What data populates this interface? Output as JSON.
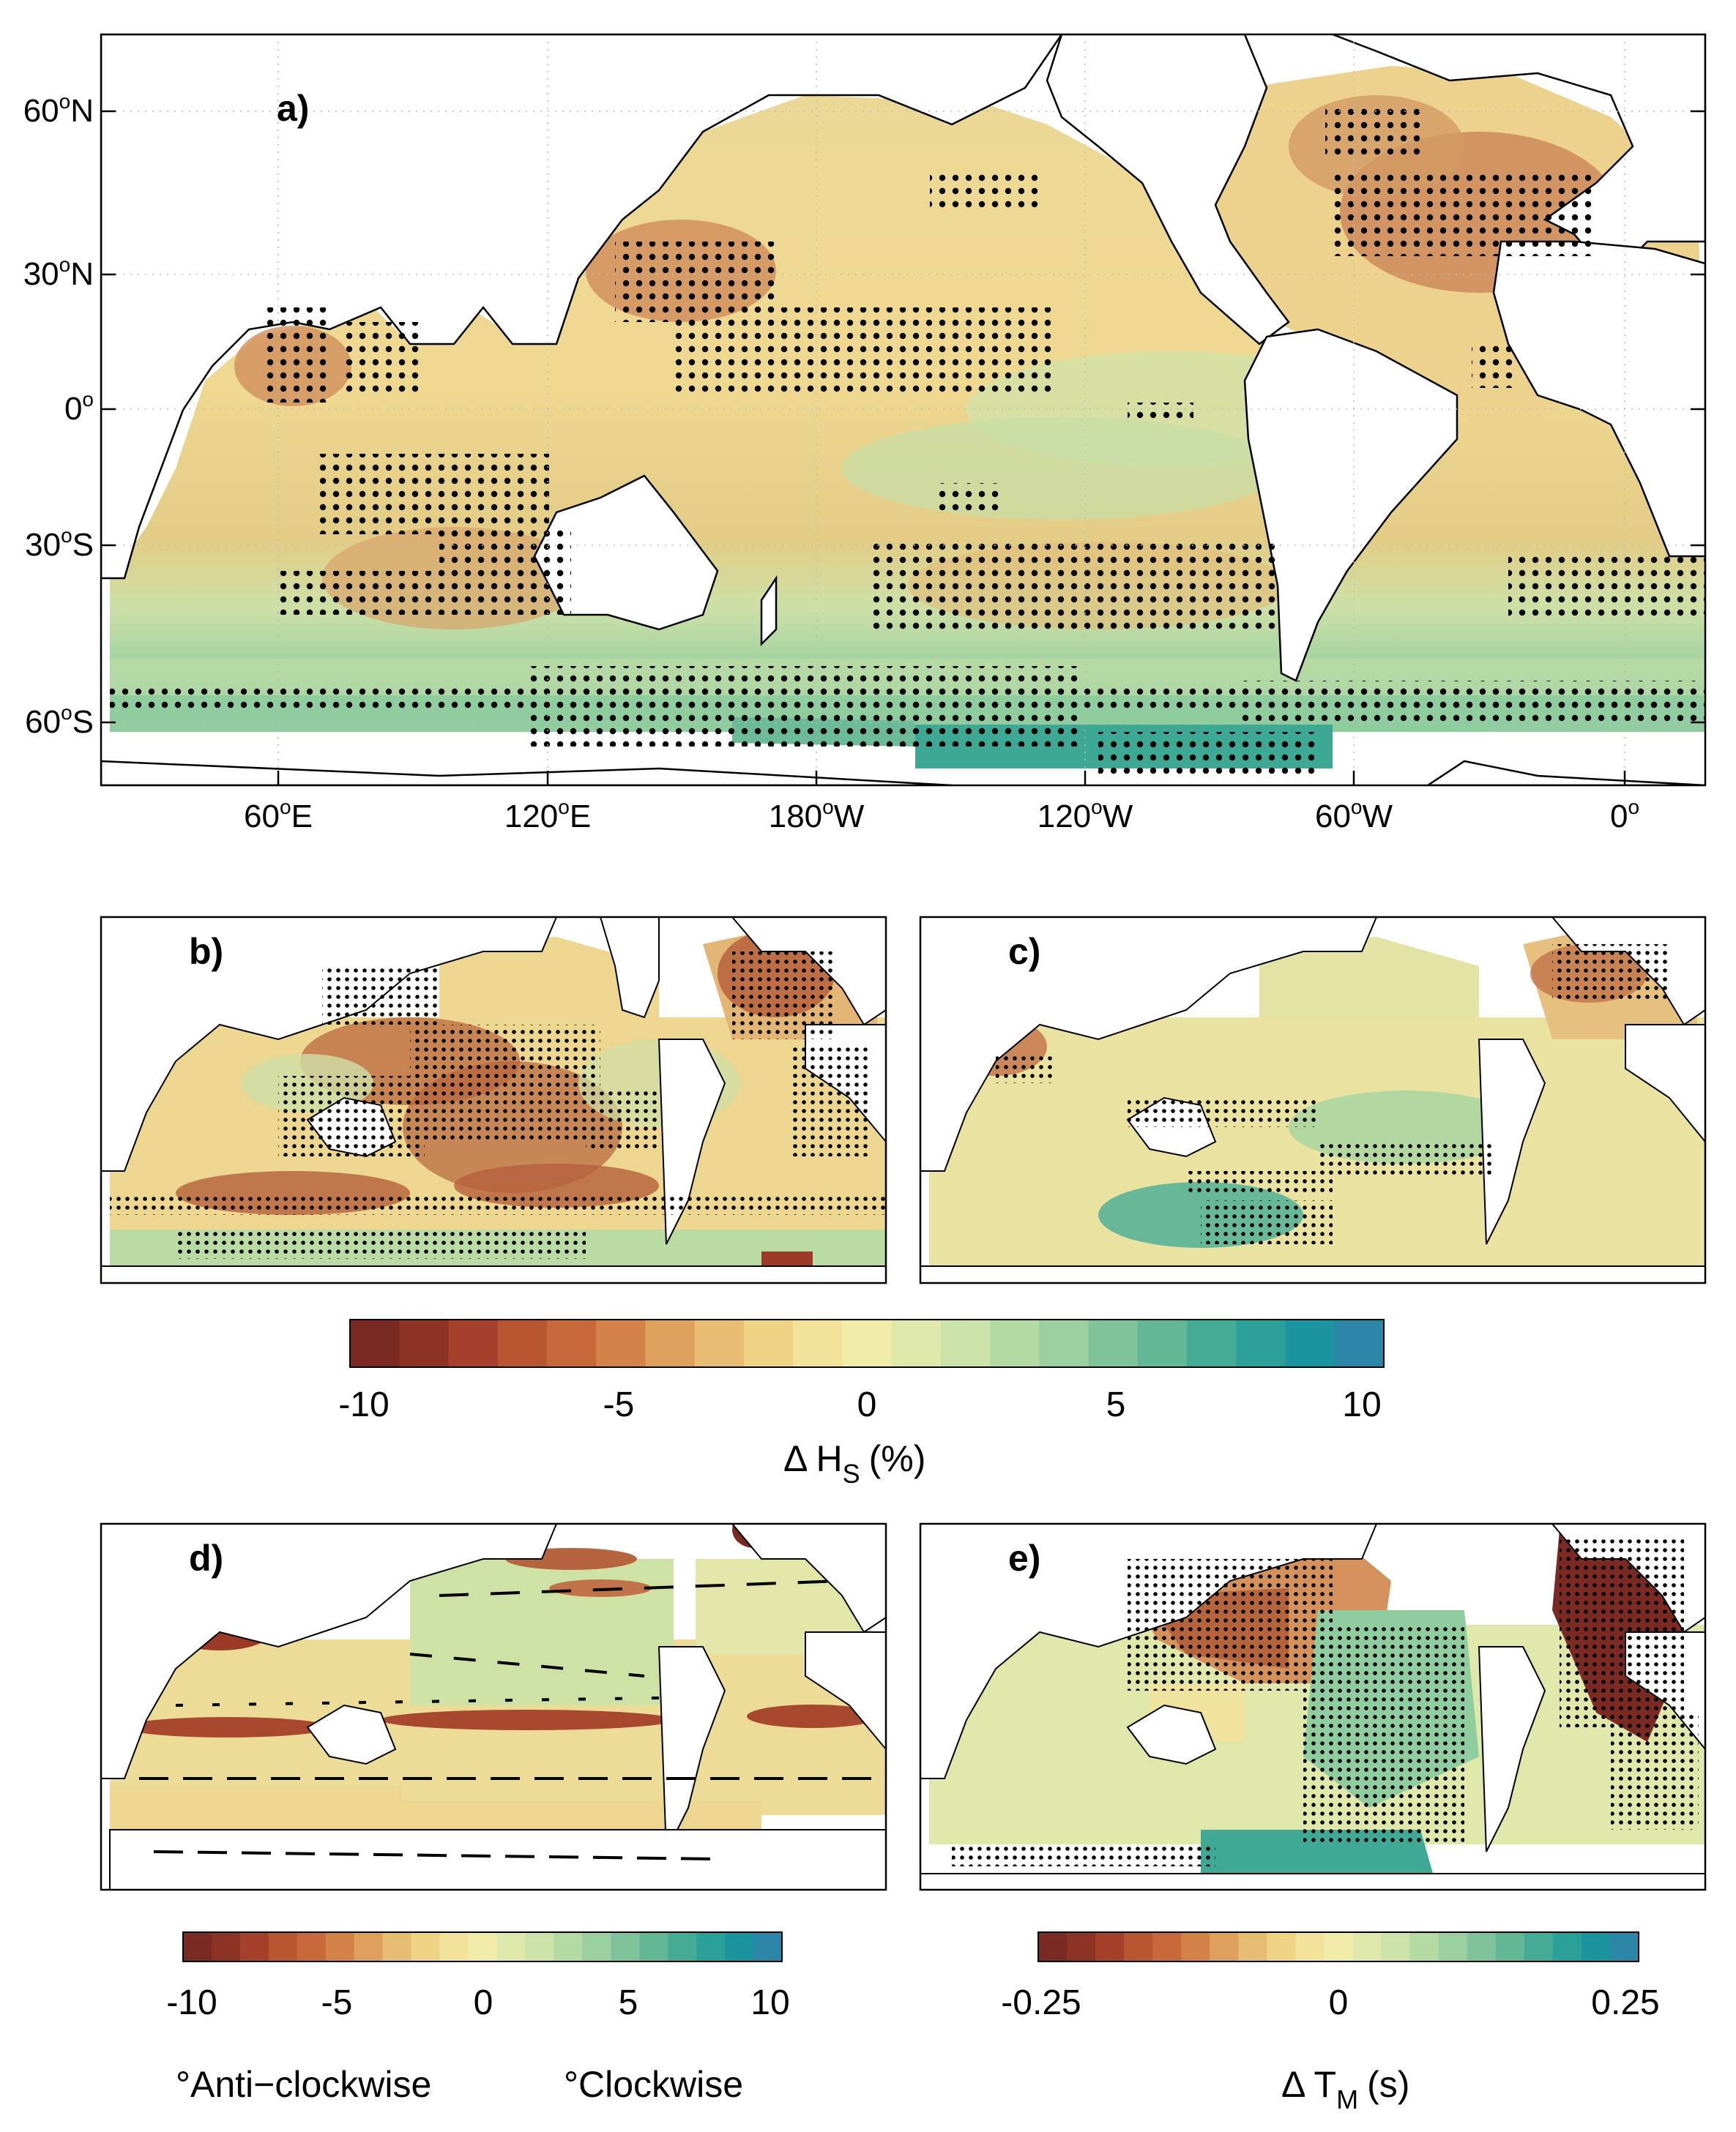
{
  "panels": {
    "a": {
      "label": "a)"
    },
    "b": {
      "label": "b)"
    },
    "c": {
      "label": "c)"
    },
    "d": {
      "label": "d)"
    },
    "e": {
      "label": "e)"
    }
  },
  "lat_ticks": [
    "60",
    "30",
    "0",
    "30",
    "60"
  ],
  "lat_suffix": [
    "N",
    "N",
    "",
    "S",
    "S"
  ],
  "lon_ticks": [
    "60",
    "120",
    "180",
    "120",
    "60",
    "0"
  ],
  "lon_suffix": [
    "E",
    "E",
    "W",
    "W",
    "W",
    ""
  ],
  "degree": "o",
  "colorbar_hs": {
    "ticks": [
      "-10",
      "-5",
      "0",
      "5",
      "10"
    ],
    "label_main": "Δ H",
    "label_sub": "S",
    "label_unit": "(%)"
  },
  "colorbar_dir": {
    "ticks": [
      "-10",
      "-5",
      "0",
      "5",
      "10"
    ],
    "label_left": "°Anti−clockwise",
    "label_right": "°Clockwise"
  },
  "colorbar_tm": {
    "ticks": [
      "-0.25",
      "0",
      "0.25"
    ],
    "label_main": "Δ T",
    "label_sub": "M",
    "label_unit": "(s)"
  },
  "colormap": [
    "#7a2a22",
    "#8d3324",
    "#a5412a",
    "#b85632",
    "#c8693b",
    "#d3834a",
    "#ddA05d",
    "#e6bd72",
    "#efd486",
    "#f3e39a",
    "#f1ecaa",
    "#dfe8ab",
    "#cbe2a8",
    "#b4daa3",
    "#9ccf9f",
    "#80c39b",
    "#62b797",
    "#45ab95",
    "#2aa098",
    "#1b94a0",
    "#2b86a8"
  ],
  "colorbar_dir_colors": [
    "#7a2a22",
    "#8d3324",
    "#a5412a",
    "#b85632",
    "#c8693b",
    "#d3834a",
    "#dda05d",
    "#e6bd72",
    "#efd486",
    "#f3e39a",
    "#f1ecaa",
    "#dfe8ab",
    "#cbe2a8",
    "#b4daa3",
    "#9ccf9f",
    "#80c39b",
    "#62b797",
    "#45ab95",
    "#2aa098",
    "#1b94a0",
    "#2b86a8"
  ]
}
